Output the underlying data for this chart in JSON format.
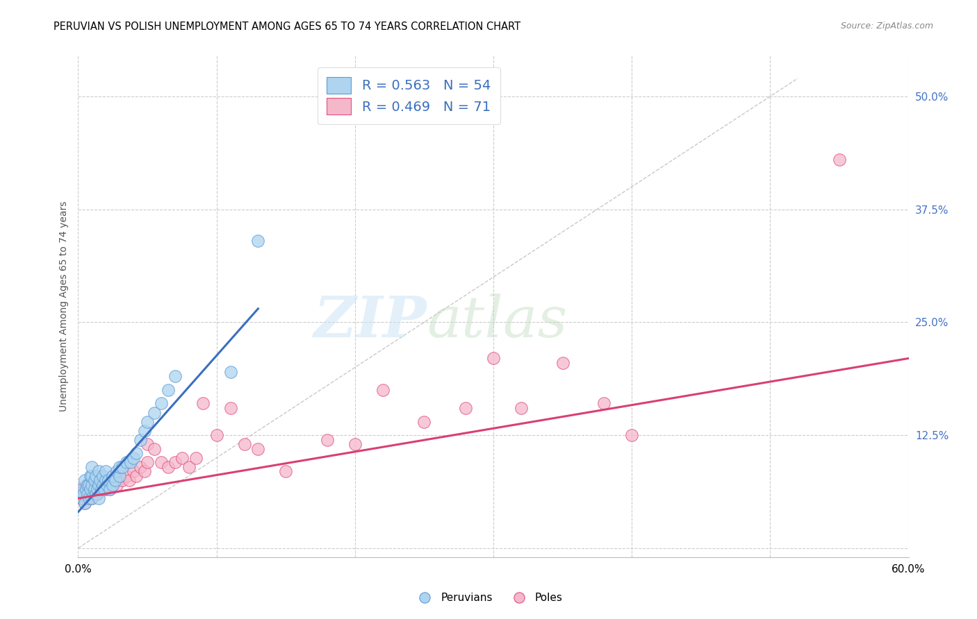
{
  "title": "PERUVIAN VS POLISH UNEMPLOYMENT AMONG AGES 65 TO 74 YEARS CORRELATION CHART",
  "source": "Source: ZipAtlas.com",
  "ylabel": "Unemployment Among Ages 65 to 74 years",
  "xlim": [
    0.0,
    0.6
  ],
  "ylim": [
    -0.01,
    0.545
  ],
  "yticks": [
    0.0,
    0.125,
    0.25,
    0.375,
    0.5
  ],
  "ytick_labels": [
    "",
    "12.5%",
    "25.0%",
    "37.5%",
    "50.0%"
  ],
  "blue_color": "#aed4ef",
  "pink_color": "#f5b8cb",
  "blue_edge_color": "#5b9bd5",
  "pink_edge_color": "#e05080",
  "blue_line_color": "#3a6fbf",
  "pink_line_color": "#d94070",
  "legend_entries": [
    {
      "R": "0.563",
      "N": "54"
    },
    {
      "R": "0.469",
      "N": "71"
    }
  ],
  "peruvians_x": [
    0.002,
    0.003,
    0.004,
    0.005,
    0.005,
    0.006,
    0.007,
    0.007,
    0.008,
    0.008,
    0.009,
    0.009,
    0.01,
    0.01,
    0.01,
    0.01,
    0.012,
    0.012,
    0.013,
    0.013,
    0.014,
    0.015,
    0.015,
    0.015,
    0.016,
    0.017,
    0.018,
    0.018,
    0.019,
    0.02,
    0.02,
    0.021,
    0.022,
    0.023,
    0.025,
    0.025,
    0.027,
    0.028,
    0.03,
    0.03,
    0.032,
    0.035,
    0.038,
    0.04,
    0.042,
    0.045,
    0.048,
    0.05,
    0.055,
    0.06,
    0.065,
    0.07,
    0.11,
    0.13
  ],
  "peruvians_y": [
    0.065,
    0.055,
    0.06,
    0.05,
    0.075,
    0.065,
    0.06,
    0.07,
    0.055,
    0.07,
    0.065,
    0.08,
    0.055,
    0.07,
    0.08,
    0.09,
    0.065,
    0.075,
    0.06,
    0.08,
    0.065,
    0.055,
    0.07,
    0.085,
    0.075,
    0.065,
    0.07,
    0.08,
    0.065,
    0.075,
    0.085,
    0.07,
    0.075,
    0.065,
    0.07,
    0.08,
    0.075,
    0.085,
    0.08,
    0.09,
    0.09,
    0.095,
    0.095,
    0.1,
    0.105,
    0.12,
    0.13,
    0.14,
    0.15,
    0.16,
    0.175,
    0.19,
    0.195,
    0.34
  ],
  "poles_x": [
    0.001,
    0.002,
    0.003,
    0.003,
    0.004,
    0.004,
    0.005,
    0.005,
    0.006,
    0.006,
    0.007,
    0.007,
    0.008,
    0.008,
    0.009,
    0.009,
    0.01,
    0.01,
    0.011,
    0.012,
    0.012,
    0.013,
    0.014,
    0.015,
    0.015,
    0.016,
    0.017,
    0.018,
    0.019,
    0.02,
    0.02,
    0.022,
    0.023,
    0.025,
    0.025,
    0.027,
    0.028,
    0.03,
    0.032,
    0.035,
    0.037,
    0.04,
    0.042,
    0.045,
    0.048,
    0.05,
    0.05,
    0.055,
    0.06,
    0.065,
    0.07,
    0.075,
    0.08,
    0.085,
    0.09,
    0.1,
    0.11,
    0.12,
    0.13,
    0.15,
    0.18,
    0.2,
    0.22,
    0.25,
    0.28,
    0.3,
    0.32,
    0.35,
    0.38,
    0.4,
    0.55
  ],
  "poles_y": [
    0.06,
    0.055,
    0.065,
    0.06,
    0.055,
    0.065,
    0.05,
    0.065,
    0.055,
    0.07,
    0.06,
    0.065,
    0.055,
    0.07,
    0.065,
    0.06,
    0.055,
    0.07,
    0.065,
    0.06,
    0.07,
    0.065,
    0.06,
    0.065,
    0.07,
    0.065,
    0.07,
    0.065,
    0.07,
    0.065,
    0.075,
    0.07,
    0.065,
    0.075,
    0.07,
    0.075,
    0.07,
    0.08,
    0.075,
    0.08,
    0.075,
    0.085,
    0.08,
    0.09,
    0.085,
    0.095,
    0.115,
    0.11,
    0.095,
    0.09,
    0.095,
    0.1,
    0.09,
    0.1,
    0.16,
    0.125,
    0.155,
    0.115,
    0.11,
    0.085,
    0.12,
    0.115,
    0.175,
    0.14,
    0.155,
    0.21,
    0.155,
    0.205,
    0.16,
    0.125,
    0.43
  ],
  "blue_line_x": [
    0.0,
    0.13
  ],
  "blue_line_y_start": 0.04,
  "blue_line_y_end": 0.265,
  "pink_line_x": [
    0.0,
    0.6
  ],
  "pink_line_y_start": 0.055,
  "pink_line_y_end": 0.21,
  "ref_line_end": 0.52
}
